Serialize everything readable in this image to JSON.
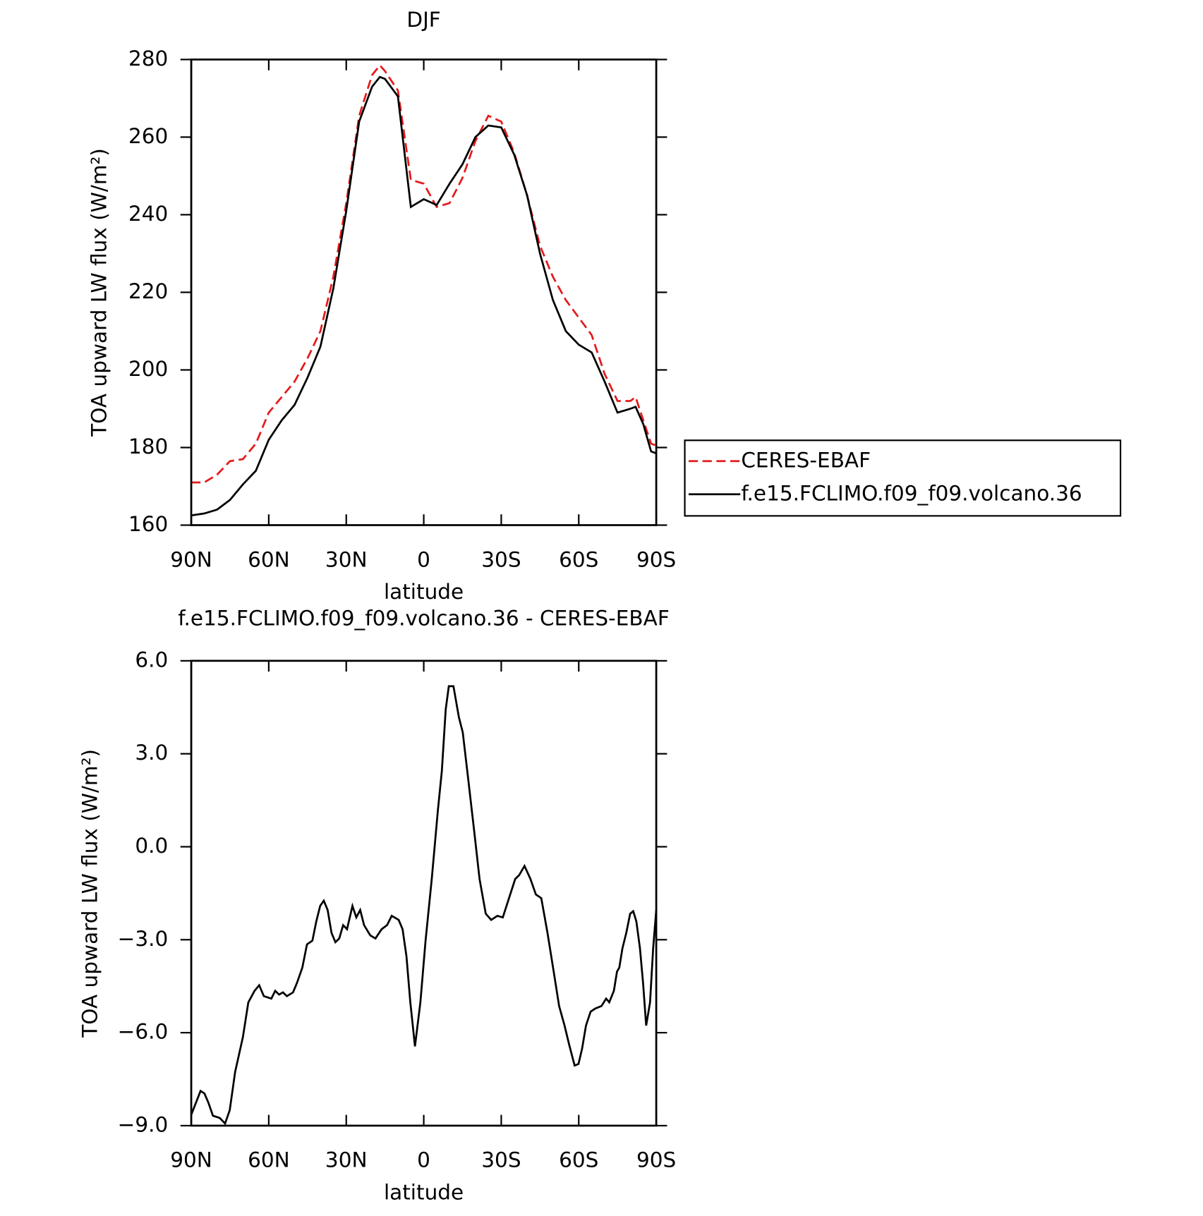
{
  "chart_data": [
    {
      "type": "line",
      "title": "DJF",
      "xlabel": "latitude",
      "ylabel": "TOA upward LW flux (W/m²)",
      "x": [
        90,
        85,
        80,
        75,
        70,
        65,
        60,
        55,
        50,
        45,
        40,
        35,
        30,
        25,
        20,
        17,
        15,
        10,
        5,
        0,
        -5,
        -10,
        -15,
        -20,
        -25,
        -30,
        -35,
        -40,
        -45,
        -50,
        -55,
        -60,
        -65,
        -70,
        -75,
        -80,
        -82,
        -85,
        -88,
        -90
      ],
      "series": [
        {
          "name": "CERES-EBAF",
          "color": "#e41a1c",
          "dashed": true,
          "values": [
            171,
            171,
            173,
            176.5,
            177,
            181,
            189,
            193,
            197,
            203,
            210,
            224,
            243,
            265.5,
            276,
            278.5,
            277,
            272,
            249,
            248,
            242,
            243,
            249.5,
            259,
            265.5,
            264,
            256,
            245,
            232,
            224,
            218,
            213.5,
            209,
            199,
            192,
            192,
            193,
            187,
            181,
            180.5
          ]
        },
        {
          "name": "f.e15.FCLIMO.f09_f09.volcano.36",
          "color": "#000000",
          "dashed": false,
          "values": [
            162.5,
            163,
            164,
            166.5,
            170.5,
            174,
            182,
            187,
            191,
            198,
            206,
            221,
            241,
            264,
            273,
            275.5,
            275,
            270.5,
            242,
            244,
            242.5,
            248,
            253,
            260,
            263,
            262.5,
            255.5,
            245,
            230,
            218,
            210,
            206.5,
            204.5,
            197,
            189,
            190,
            190.5,
            186,
            179,
            178.5
          ]
        }
      ],
      "xlim": [
        90,
        -90
      ],
      "xticks": [
        {
          "value": 90,
          "label": "90N"
        },
        {
          "value": 60,
          "label": "60N"
        },
        {
          "value": 30,
          "label": "30N"
        },
        0,
        {
          "value": -30,
          "label": "30S"
        },
        {
          "value": -60,
          "label": "60S"
        },
        {
          "value": -90,
          "label": "90S"
        }
      ],
      "ylim": [
        160,
        280
      ],
      "yticks": [
        160,
        180,
        200,
        220,
        240,
        260,
        280
      ],
      "legend": "outside right"
    },
    {
      "type": "line",
      "title": "f.e15.FCLIMO.f09_f09.volcano.36 - CERES-EBAF",
      "xlabel": "latitude",
      "ylabel": "TOA upward LW flux (W/m²)",
      "x": [
        90,
        86.4,
        84.9,
        83.4,
        81.6,
        79.0,
        76.9,
        75.1,
        73.0,
        70.0,
        67.9,
        65.5,
        63.7,
        61.9,
        59.0,
        57.5,
        56.0,
        54.5,
        53.0,
        50.6,
        49.1,
        47.0,
        45.2,
        43.1,
        41.6,
        40.1,
        38.7,
        37.2,
        35.7,
        34.2,
        32.7,
        31.2,
        29.7,
        27.6,
        26.1,
        24.6,
        23.1,
        20.7,
        18.7,
        16.3,
        14.2,
        12.4,
        9.7,
        8.2,
        6.7,
        5.2,
        3.4,
        1.3,
        -0.7,
        -3.1,
        -5.5,
        -7.0,
        -8.5,
        -9.7,
        -11.5,
        -13.6,
        -15.1,
        -17.2,
        -19.6,
        -21.6,
        -24.0,
        -26.1,
        -28.5,
        -30.6,
        -33.0,
        -35.4,
        -36.9,
        -39.0,
        -41.3,
        -43.4,
        -45.5,
        -47.9,
        -50.3,
        -52.4,
        -54.5,
        -56.3,
        -58.4,
        -59.9,
        -61.3,
        -62.8,
        -64.6,
        -66.4,
        -68.8,
        -70.6,
        -71.8,
        -73.6,
        -74.8,
        -75.7,
        -76.9,
        -78.4,
        -79.9,
        -81.1,
        -82.3,
        -83.7,
        -84.9,
        -86.1,
        -87.6,
        -88.8,
        -90
      ],
      "values": [
        -8.65,
        -7.88,
        -7.96,
        -8.25,
        -8.68,
        -8.75,
        -8.93,
        -8.5,
        -7.26,
        -6.14,
        -5.02,
        -4.65,
        -4.47,
        -4.82,
        -4.9,
        -4.65,
        -4.77,
        -4.7,
        -4.82,
        -4.7,
        -4.4,
        -3.9,
        -3.15,
        -3.03,
        -2.41,
        -1.91,
        -1.74,
        -2.04,
        -2.78,
        -3.08,
        -2.96,
        -2.53,
        -2.66,
        -1.91,
        -2.28,
        -2.04,
        -2.53,
        -2.86,
        -2.96,
        -2.66,
        -2.53,
        -2.23,
        -2.36,
        -2.66,
        -3.53,
        -5.02,
        -6.44,
        -5.02,
        -3.03,
        -1.04,
        1.2,
        2.44,
        4.43,
        5.18,
        5.18,
        4.18,
        3.69,
        2.19,
        0.45,
        -1.04,
        -2.16,
        -2.36,
        -2.23,
        -2.28,
        -1.66,
        -1.04,
        -0.92,
        -0.62,
        -1.04,
        -1.54,
        -1.66,
        -2.78,
        -4.03,
        -5.14,
        -5.77,
        -6.39,
        -7.06,
        -7.01,
        -6.51,
        -5.77,
        -5.32,
        -5.22,
        -5.14,
        -4.9,
        -5.02,
        -4.65,
        -4.03,
        -3.9,
        -3.28,
        -2.78,
        -2.16,
        -2.08,
        -2.41,
        -3.28,
        -4.4,
        -5.77,
        -5.02,
        -3.28,
        -2.04
      ],
      "color": "#000000",
      "xlim": [
        90,
        -90
      ],
      "xticks": [
        {
          "value": 90,
          "label": "90N"
        },
        {
          "value": 60,
          "label": "60N"
        },
        {
          "value": 30,
          "label": "30N"
        },
        0,
        {
          "value": -30,
          "label": "30S"
        },
        {
          "value": -60,
          "label": "60S"
        },
        {
          "value": -90,
          "label": "90S"
        }
      ],
      "ylim": [
        -9,
        6
      ],
      "yticks": [
        {
          "value": -9,
          "label": "−9.0"
        },
        {
          "value": -6,
          "label": "−6.0"
        },
        {
          "value": -3,
          "label": "−3.0"
        },
        {
          "value": 0,
          "label": "0.0"
        },
        {
          "value": 3,
          "label": "3.0"
        },
        {
          "value": 6,
          "label": "6.0"
        }
      ]
    }
  ]
}
